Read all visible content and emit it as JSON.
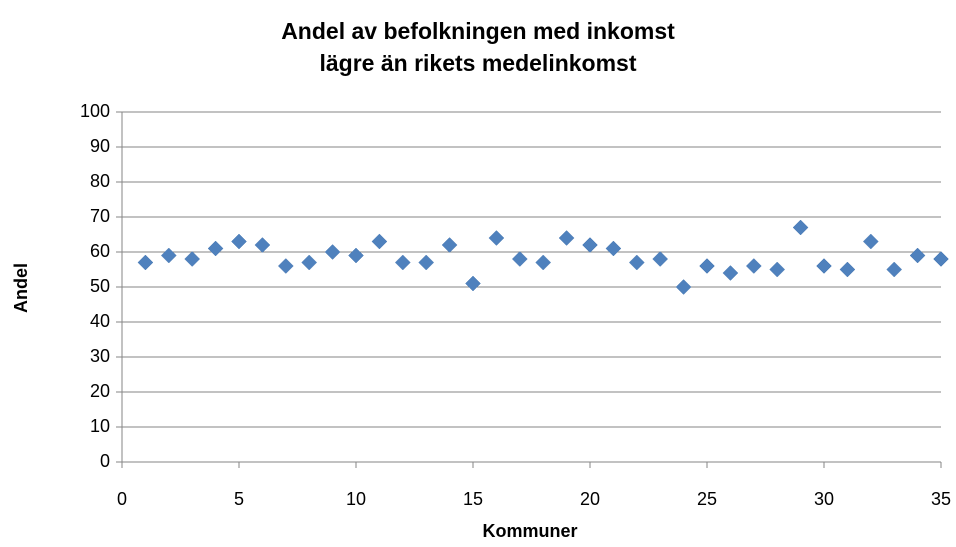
{
  "chart_data": {
    "type": "scatter",
    "title": [
      "Andel av befolkningen med inkomst",
      "lägre än rikets medelinkomst"
    ],
    "x_label": "Kommuner",
    "y_label": "Andel",
    "x": [
      1,
      2,
      3,
      4,
      5,
      6,
      7,
      8,
      9,
      10,
      11,
      12,
      13,
      14,
      15,
      16,
      17,
      18,
      19,
      20,
      21,
      22,
      23,
      24,
      25,
      26,
      27,
      28,
      29,
      30,
      31,
      32,
      33,
      34,
      35
    ],
    "values": [
      57,
      59,
      58,
      61,
      63,
      62,
      56,
      57,
      60,
      59,
      63,
      57,
      57,
      62,
      51,
      64,
      58,
      57,
      64,
      62,
      61,
      57,
      58,
      50,
      56,
      54,
      56,
      55,
      67,
      56,
      55,
      63,
      55,
      59,
      58
    ],
    "color": "#4f81bd",
    "xlim": [
      0,
      35
    ],
    "xticks": [
      0,
      5,
      10,
      15,
      20,
      25,
      30,
      35
    ],
    "ylim": [
      0,
      100
    ],
    "yticks": [
      0,
      10,
      20,
      30,
      40,
      50,
      60,
      70,
      80,
      90,
      100
    ],
    "grid": true
  }
}
